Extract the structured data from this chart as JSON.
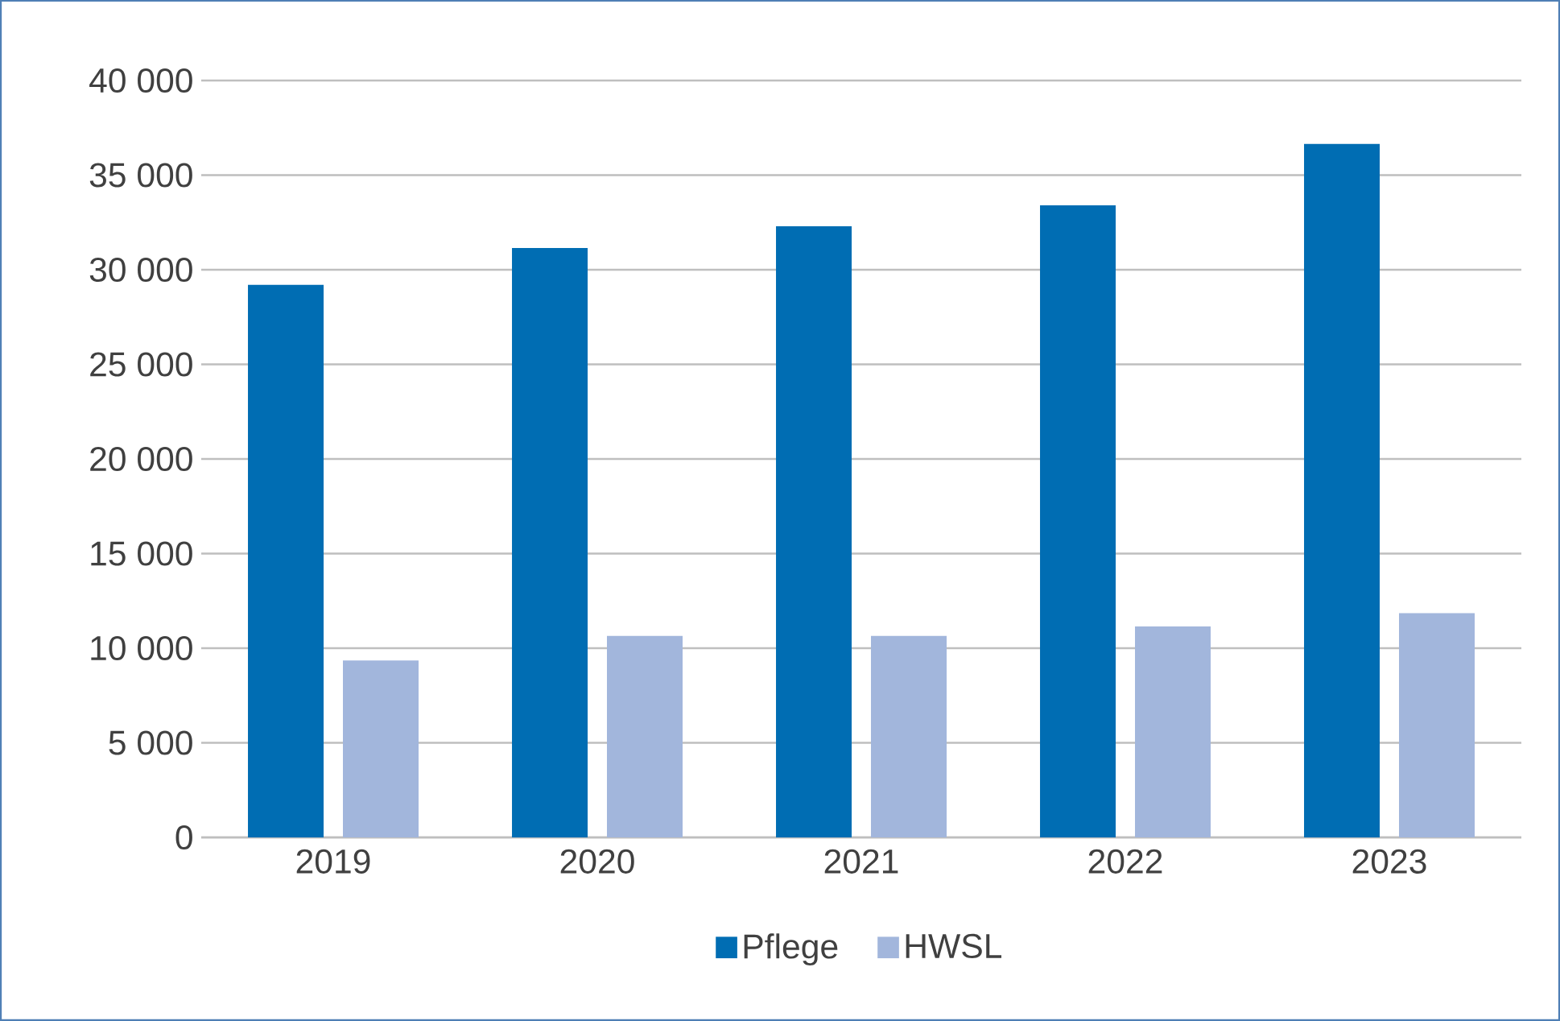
{
  "chart_data": {
    "type": "bar",
    "categories": [
      "2019",
      "2020",
      "2021",
      "2022",
      "2023"
    ],
    "series": [
      {
        "name": "Pflege",
        "color": "#006db3",
        "values": [
          29200,
          31150,
          32300,
          33400,
          36650
        ]
      },
      {
        "name": "HWSL",
        "color": "#a2b6dc",
        "values": [
          9350,
          10650,
          10650,
          11150,
          11850
        ]
      }
    ],
    "ylim": [
      0,
      40000
    ],
    "yticks": [
      0,
      {
        "value": 5000,
        "label": "5 000"
      },
      {
        "value": 10000,
        "label": "10 000"
      },
      {
        "value": 15000,
        "label": "15 000"
      },
      {
        "value": 20000,
        "label": "20 000"
      },
      {
        "value": 25000,
        "label": "25 000"
      },
      {
        "value": 30000,
        "label": "30 000"
      },
      {
        "value": 35000,
        "label": "35 000"
      },
      {
        "value": 40000,
        "label": "40 000"
      }
    ],
    "grid": "y",
    "legend": "bottom"
  }
}
